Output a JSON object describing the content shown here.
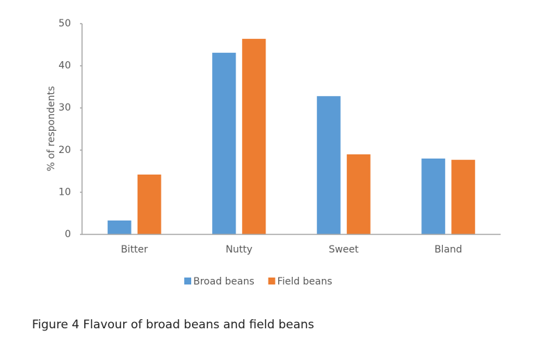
{
  "chart_data": {
    "type": "bar",
    "caption": "Figure 4 Flavour of broad beans and field beans",
    "y_label": "% of respondents",
    "categories": [
      "Bitter",
      "Nutty",
      "Sweet",
      "Bland"
    ],
    "series": [
      {
        "name": "Broad beans",
        "color": "#5b9bd5",
        "values": [
          3.3,
          43.1,
          32.8,
          18.0
        ]
      },
      {
        "name": "Field beans",
        "color": "#ed7d31",
        "values": [
          14.2,
          46.4,
          19.0,
          17.7
        ]
      }
    ],
    "ylim": [
      0,
      50
    ],
    "yticks": [
      0,
      10,
      20,
      30,
      40,
      50
    ],
    "grid": false,
    "legend": "bottom"
  }
}
